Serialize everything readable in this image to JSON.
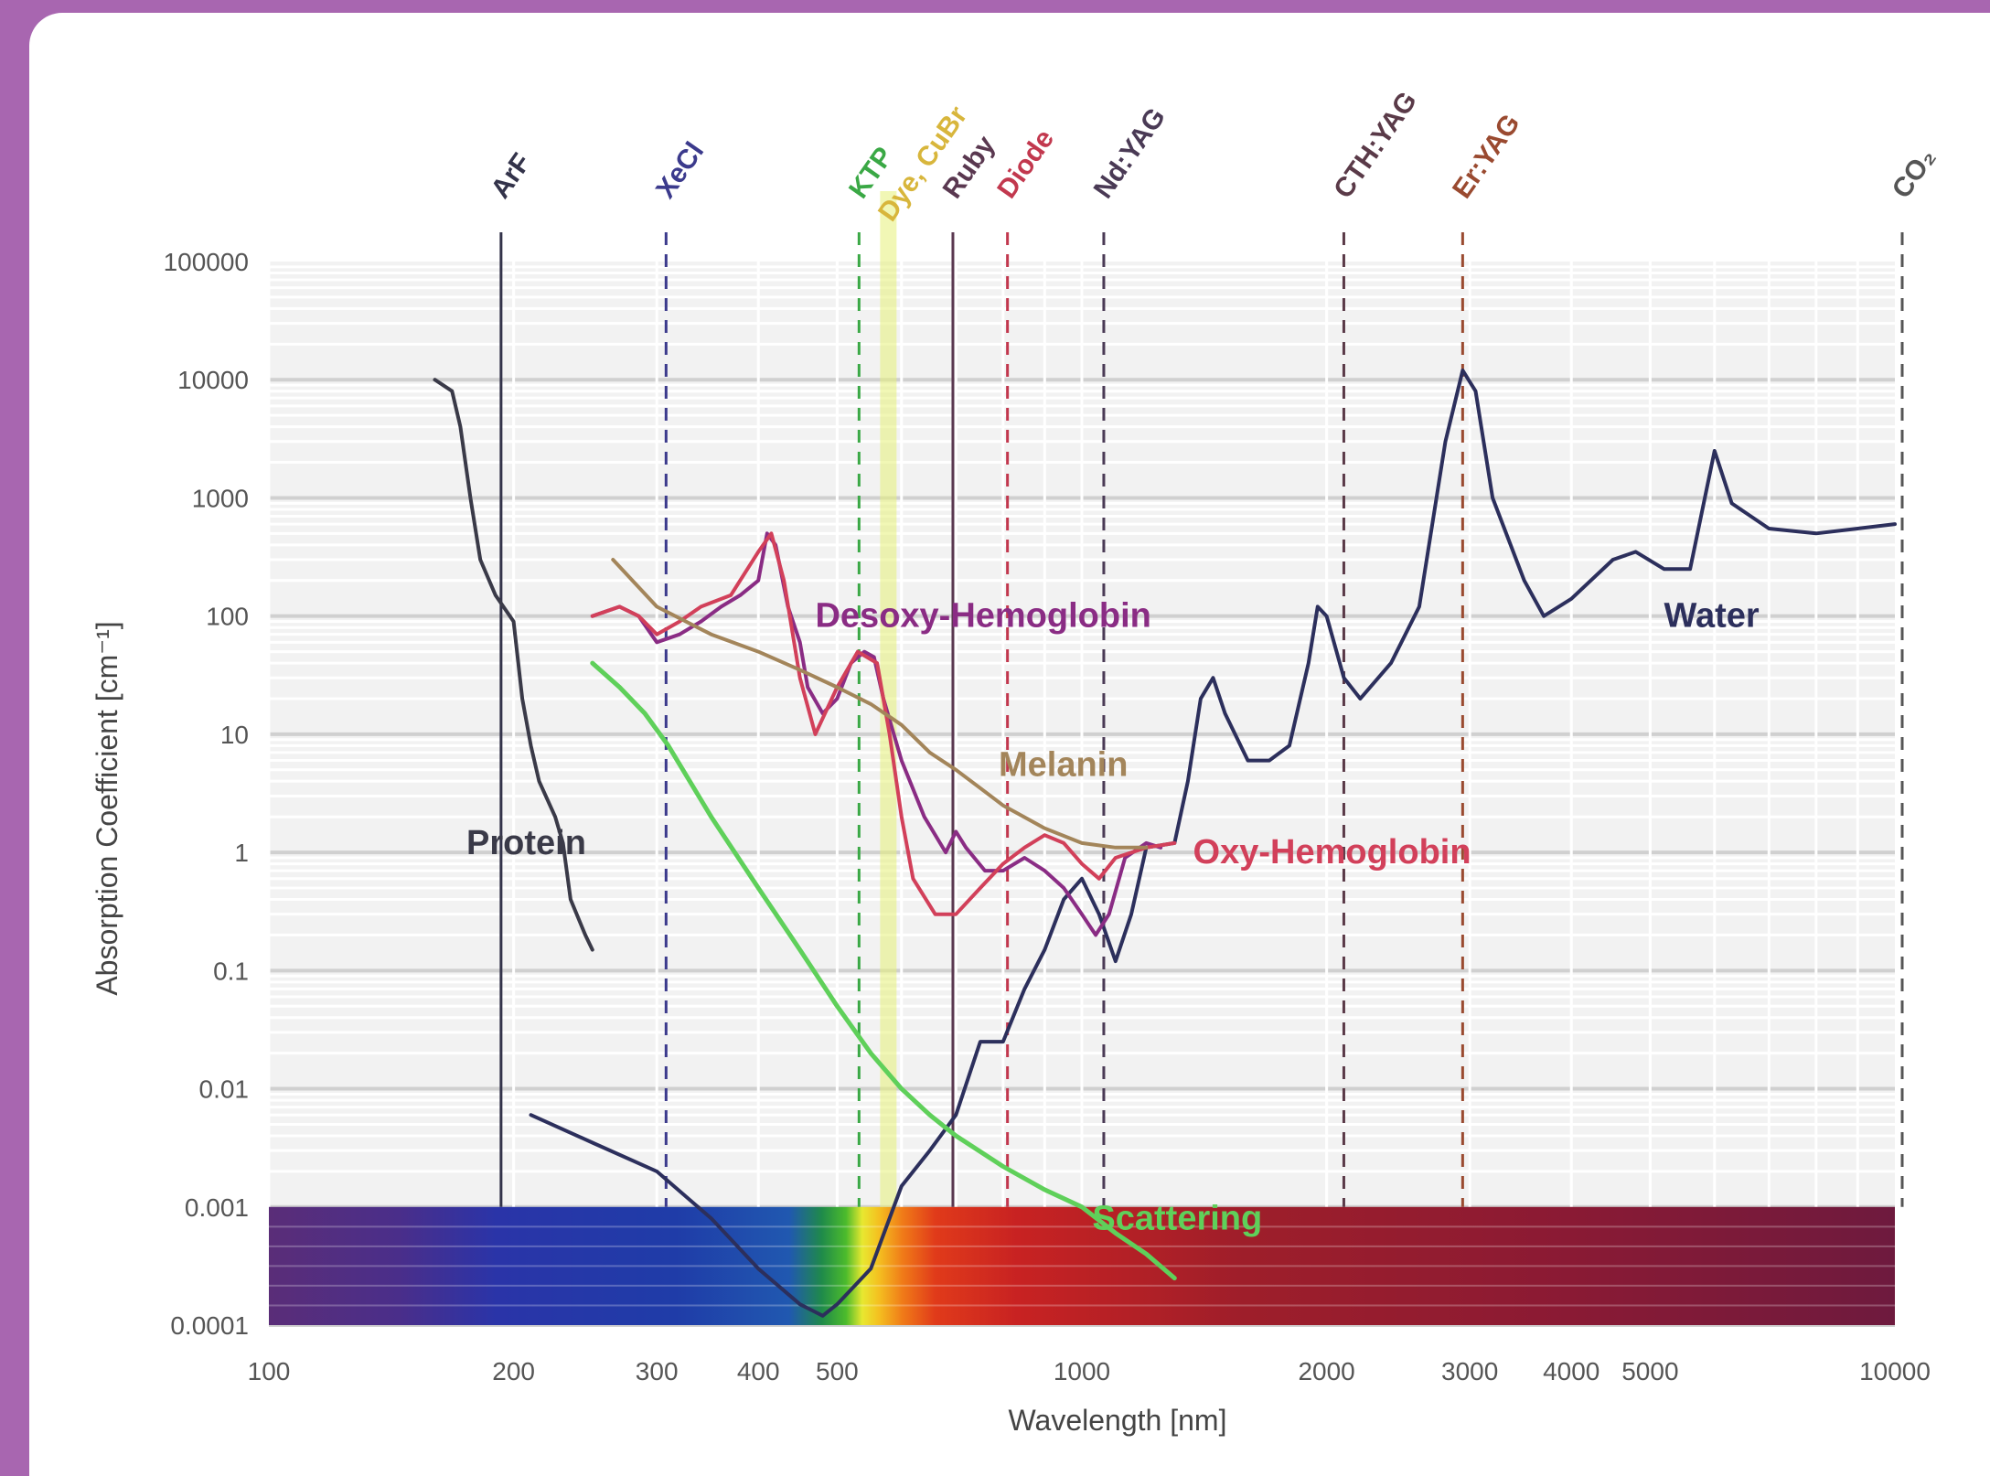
{
  "colors": {
    "water": "#2c2f5c",
    "protein": "#3a3a48",
    "desoxy": "#8a2c84",
    "oxy": "#d2405a",
    "melanin": "#a3855a",
    "scattering": "#5fd05a"
  },
  "chart_data": {
    "type": "line",
    "title": "",
    "xlabel": "Wavelength [nm]",
    "ylabel": "Absorption Coefficient [cm⁻¹]",
    "xscale": "log",
    "yscale": "log",
    "xlim": [
      100,
      10000
    ],
    "ylim": [
      0.0001,
      100000
    ],
    "grid": true,
    "x_ticks": [
      {
        "value": 100,
        "label": "100"
      },
      {
        "value": 200,
        "label": "200"
      },
      {
        "value": 300,
        "label": "300"
      },
      {
        "value": 400,
        "label": "400"
      },
      {
        "value": 500,
        "label": "500"
      },
      {
        "value": 1000,
        "label": "1000"
      },
      {
        "value": 2000,
        "label": "2000"
      },
      {
        "value": 3000,
        "label": "3000"
      },
      {
        "value": 4000,
        "label": "4000"
      },
      {
        "value": 5000,
        "label": "5000"
      },
      {
        "value": 10000,
        "label": "10000"
      }
    ],
    "y_ticks": [
      {
        "value": 100000,
        "label": "100000"
      },
      {
        "value": 10000,
        "label": "10000"
      },
      {
        "value": 1000,
        "label": "1000"
      },
      {
        "value": 100,
        "label": "100"
      },
      {
        "value": 10,
        "label": "10"
      },
      {
        "value": 1,
        "label": "1"
      },
      {
        "value": 0.1,
        "label": "0.1"
      },
      {
        "value": 0.01,
        "label": "0.01"
      },
      {
        "value": 0.001,
        "label": "0.001"
      },
      {
        "value": 0.0001,
        "label": "0.0001"
      }
    ],
    "spectrum_band": {
      "y_from": 0.0001,
      "y_to": 0.001,
      "x_from": 100,
      "x_to": 10000
    },
    "lasers": [
      {
        "name": "ArF",
        "wavelength": 193,
        "style": "solid",
        "color": "#33334a"
      },
      {
        "name": "XeCl",
        "wavelength": 308,
        "style": "dashed",
        "color": "#3b3a8c"
      },
      {
        "name": "KTP",
        "wavelength": 532,
        "style": "dashed",
        "color": "#3aa845"
      },
      {
        "name": "Dye, CuBr",
        "wavelength": 578,
        "style": "band",
        "color": "#d8b63c"
      },
      {
        "name": "Ruby",
        "wavelength": 694,
        "style": "solid",
        "color": "#5a3850"
      },
      {
        "name": "Diode",
        "wavelength": 810,
        "style": "dashed",
        "color": "#c2384e"
      },
      {
        "name": "Nd:YAG",
        "wavelength": 1064,
        "style": "dashed",
        "color": "#4a3a55"
      },
      {
        "name": "CTH:YAG",
        "wavelength": 2100,
        "style": "dashed",
        "color": "#5a3a48"
      },
      {
        "name": "Er:YAG",
        "wavelength": 2940,
        "style": "dashed",
        "color": "#9a4a30"
      },
      {
        "name": "CO₂",
        "wavelength": 10600,
        "style": "dashed",
        "color": "#555555"
      }
    ],
    "series": [
      {
        "name": "Water",
        "label_at": [
          5200,
          100
        ],
        "color_key": "water",
        "points": [
          [
            210,
            0.006
          ],
          [
            250,
            0.0035
          ],
          [
            300,
            0.002
          ],
          [
            350,
            0.0008
          ],
          [
            400,
            0.0003
          ],
          [
            450,
            0.00015
          ],
          [
            480,
            0.00012
          ],
          [
            500,
            0.00015
          ],
          [
            550,
            0.0003
          ],
          [
            600,
            0.0015
          ],
          [
            650,
            0.003
          ],
          [
            700,
            0.006
          ],
          [
            750,
            0.025
          ],
          [
            800,
            0.025
          ],
          [
            850,
            0.07
          ],
          [
            900,
            0.15
          ],
          [
            950,
            0.4
          ],
          [
            1000,
            0.6
          ],
          [
            1050,
            0.3
          ],
          [
            1100,
            0.12
          ],
          [
            1150,
            0.3
          ],
          [
            1200,
            1.1
          ],
          [
            1300,
            1.2
          ],
          [
            1350,
            4
          ],
          [
            1400,
            20
          ],
          [
            1450,
            30
          ],
          [
            1500,
            15
          ],
          [
            1600,
            6
          ],
          [
            1700,
            6
          ],
          [
            1800,
            8
          ],
          [
            1900,
            40
          ],
          [
            1950,
            120
          ],
          [
            2000,
            100
          ],
          [
            2100,
            30
          ],
          [
            2200,
            20
          ],
          [
            2400,
            40
          ],
          [
            2600,
            120
          ],
          [
            2800,
            3000
          ],
          [
            2940,
            12000
          ],
          [
            3050,
            8000
          ],
          [
            3200,
            1000
          ],
          [
            3500,
            200
          ],
          [
            3700,
            100
          ],
          [
            4000,
            140
          ],
          [
            4500,
            300
          ],
          [
            4800,
            350
          ],
          [
            5200,
            250
          ],
          [
            5600,
            250
          ],
          [
            6000,
            2500
          ],
          [
            6300,
            900
          ],
          [
            7000,
            550
          ],
          [
            8000,
            500
          ],
          [
            9000,
            550
          ],
          [
            10000,
            600
          ]
        ]
      },
      {
        "name": "Protein",
        "label_at": [
          175,
          1.2
        ],
        "color_key": "protein",
        "points": [
          [
            160,
            10000
          ],
          [
            168,
            8000
          ],
          [
            172,
            4000
          ],
          [
            177,
            1000
          ],
          [
            182,
            300
          ],
          [
            190,
            150
          ],
          [
            196,
            110
          ],
          [
            200,
            90
          ],
          [
            205,
            20
          ],
          [
            210,
            8
          ],
          [
            215,
            4
          ],
          [
            225,
            2
          ],
          [
            230,
            1.2
          ],
          [
            235,
            0.4
          ],
          [
            245,
            0.2
          ],
          [
            250,
            0.15
          ]
        ]
      },
      {
        "name": "Desoxy-Hemoglobin",
        "label_at": [
          470,
          100
        ],
        "color_key": "desoxy",
        "points": [
          [
            250,
            100
          ],
          [
            270,
            120
          ],
          [
            285,
            100
          ],
          [
            300,
            60
          ],
          [
            320,
            70
          ],
          [
            340,
            90
          ],
          [
            360,
            120
          ],
          [
            380,
            150
          ],
          [
            400,
            200
          ],
          [
            410,
            500
          ],
          [
            420,
            400
          ],
          [
            435,
            120
          ],
          [
            450,
            60
          ],
          [
            460,
            25
          ],
          [
            480,
            15
          ],
          [
            500,
            20
          ],
          [
            520,
            40
          ],
          [
            540,
            50
          ],
          [
            555,
            45
          ],
          [
            570,
            20
          ],
          [
            600,
            6
          ],
          [
            640,
            2
          ],
          [
            680,
            1
          ],
          [
            700,
            1.5
          ],
          [
            720,
            1.1
          ],
          [
            760,
            0.7
          ],
          [
            800,
            0.7
          ],
          [
            850,
            0.9
          ],
          [
            900,
            0.7
          ],
          [
            950,
            0.5
          ],
          [
            1000,
            0.3
          ],
          [
            1040,
            0.2
          ],
          [
            1080,
            0.3
          ],
          [
            1130,
            0.9
          ],
          [
            1200,
            1.2
          ],
          [
            1250,
            1.1
          ]
        ]
      },
      {
        "name": "Oxy-Hemoglobin",
        "label_at": [
          1370,
          1.0
        ],
        "color_key": "oxy",
        "points": [
          [
            250,
            100
          ],
          [
            270,
            120
          ],
          [
            285,
            100
          ],
          [
            300,
            70
          ],
          [
            320,
            90
          ],
          [
            340,
            120
          ],
          [
            370,
            150
          ],
          [
            400,
            350
          ],
          [
            415,
            500
          ],
          [
            430,
            200
          ],
          [
            450,
            30
          ],
          [
            470,
            10
          ],
          [
            500,
            25
          ],
          [
            530,
            50
          ],
          [
            560,
            40
          ],
          [
            580,
            10
          ],
          [
            600,
            2
          ],
          [
            620,
            0.6
          ],
          [
            660,
            0.3
          ],
          [
            700,
            0.3
          ],
          [
            750,
            0.5
          ],
          [
            800,
            0.8
          ],
          [
            850,
            1.1
          ],
          [
            900,
            1.4
          ],
          [
            950,
            1.2
          ],
          [
            1000,
            0.8
          ],
          [
            1050,
            0.6
          ],
          [
            1100,
            0.9
          ],
          [
            1200,
            1.1
          ],
          [
            1300,
            1.2
          ]
        ]
      },
      {
        "name": "Melanin",
        "label_at": [
          790,
          5.5
        ],
        "color_key": "melanin",
        "points": [
          [
            265,
            300
          ],
          [
            300,
            120
          ],
          [
            350,
            70
          ],
          [
            400,
            50
          ],
          [
            450,
            35
          ],
          [
            500,
            25
          ],
          [
            550,
            18
          ],
          [
            600,
            12
          ],
          [
            650,
            7
          ],
          [
            700,
            5
          ],
          [
            750,
            3.5
          ],
          [
            800,
            2.5
          ],
          [
            900,
            1.6
          ],
          [
            1000,
            1.2
          ],
          [
            1100,
            1.1
          ],
          [
            1200,
            1.1
          ]
        ]
      },
      {
        "name": "Scattering",
        "label_at": [
          1030,
          0.0008
        ],
        "color_key": "scattering",
        "points": [
          [
            250,
            40
          ],
          [
            270,
            25
          ],
          [
            290,
            15
          ],
          [
            310,
            8
          ],
          [
            350,
            2
          ],
          [
            400,
            0.5
          ],
          [
            450,
            0.15
          ],
          [
            500,
            0.05
          ],
          [
            550,
            0.02
          ],
          [
            600,
            0.01
          ],
          [
            650,
            0.006
          ],
          [
            700,
            0.004
          ],
          [
            800,
            0.0022
          ],
          [
            900,
            0.0014
          ],
          [
            1000,
            0.001
          ],
          [
            1100,
            0.0006
          ],
          [
            1200,
            0.0004
          ],
          [
            1300,
            0.00025
          ]
        ]
      }
    ]
  }
}
